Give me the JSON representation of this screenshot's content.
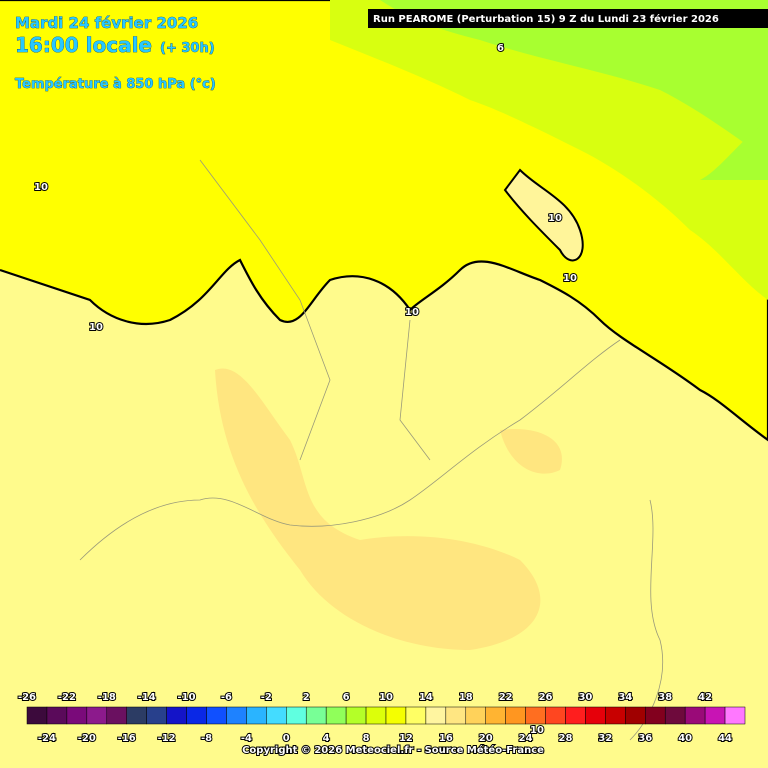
{
  "header": {
    "date": "Mardi 24 février 2026",
    "time": "16:00 locale",
    "lead": "(+ 30h)",
    "parameter": "Température à 850 hPa (°c)",
    "run": "Run PEAROME (Perturbation 15) 9 Z du Lundi 23 février 2026"
  },
  "map": {
    "contour_labels": [
      "10",
      "10",
      "10",
      "10",
      "10",
      "6",
      "10"
    ]
  },
  "legend": {
    "ticks": [
      -26,
      -24,
      -22,
      -20,
      -18,
      -16,
      -14,
      -12,
      -10,
      -8,
      -6,
      -4,
      -2,
      0,
      2,
      4,
      6,
      8,
      10,
      12,
      14,
      16,
      18,
      20,
      22,
      24,
      26,
      28,
      30,
      32,
      34,
      36,
      38,
      40,
      42,
      44
    ],
    "colors": [
      "#3c0a3c",
      "#5a0a5a",
      "#7a0a7a",
      "#8c1a8c",
      "#6a1060",
      "#2c3c64",
      "#28408c",
      "#1414c8",
      "#0a28e6",
      "#1050ff",
      "#1e82ff",
      "#2ab4ff",
      "#44dcff",
      "#60ffe0",
      "#78ff96",
      "#90ff5a",
      "#b4ff28",
      "#dcff0a",
      "#f5ff00",
      "#ffff64",
      "#fff5a0",
      "#ffe682",
      "#ffd25a",
      "#ffb432",
      "#ff9620",
      "#ff6e20",
      "#ff4620",
      "#ff1e1e",
      "#e6000a",
      "#c80000",
      "#a00000",
      "#82001e",
      "#6e0a3c",
      "#9a0a78",
      "#c814b4",
      "#ff78ff"
    ]
  },
  "footer": {
    "copyright": "Copyright © 2026 Meteociel.fr - Source Météo-France"
  }
}
